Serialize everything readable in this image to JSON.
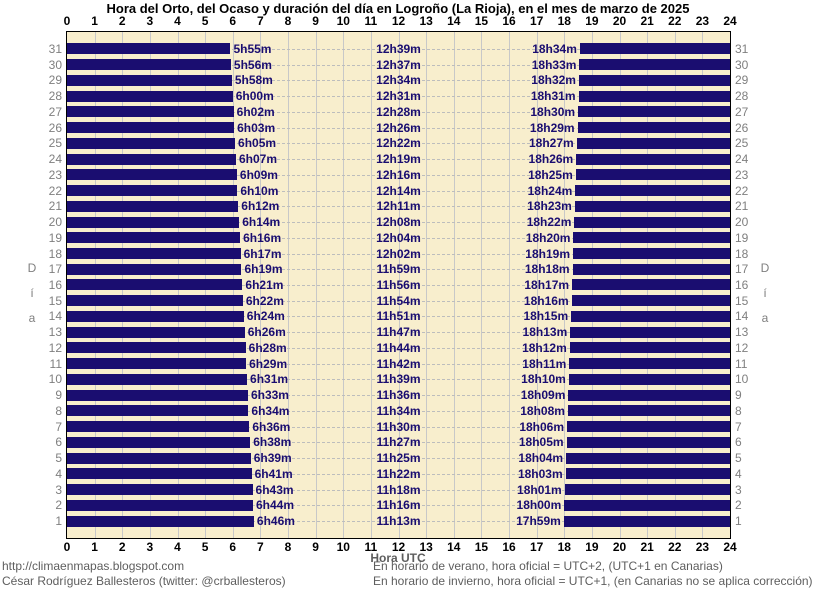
{
  "page": {
    "title": "Hora del Orto, del Ocaso y duración del día en Logroño (La Rioja), en el mes de marzo de 2025",
    "x_axis_title": "Hora UTC",
    "footer": {
      "left_line1": "http://climaenmapas.blogspot.com",
      "left_line2": "César Rodríguez Ballesteros (twitter: @crballesteros)",
      "right_line1": "En horario de verano, hora oficial = UTC+2, (UTC+1 en Canarias)",
      "right_line2": "En horario de invierno, hora oficial = UTC+1, (en Canarias no se aplica corrección)"
    }
  },
  "chart_data": {
    "type": "bar",
    "title": "Hora del Orto, del Ocaso y duración del día en Logroño (La Rioja), en el mes de marzo de 2025",
    "xlabel": "Hora UTC",
    "ylabel": "Día",
    "ylabel_letters": [
      "D",
      "í",
      "a"
    ],
    "x_axis": {
      "min": 0,
      "max": 24,
      "tick_step": 1,
      "tick_labels": [
        "0",
        "1",
        "2",
        "3",
        "4",
        "5",
        "6",
        "7",
        "8",
        "9",
        "10",
        "11",
        "12",
        "13",
        "14",
        "15",
        "16",
        "17",
        "18",
        "19",
        "20",
        "21",
        "22",
        "23",
        "24"
      ]
    },
    "y_axis": {
      "label": "Día",
      "days_order": "31 at top down to 1 at bottom"
    },
    "grid": true,
    "legend": false,
    "colors": {
      "night_bar": "#1a0d70",
      "plot_background": "#f8eecd",
      "gridline": "#c8c8c8",
      "row_gridline_dashed": "#bdbdbd",
      "time_label_text": "#1a0d70",
      "day_number_text": "#7f7f7f",
      "footer_text": "#5e5e5e",
      "axis_number_text": "#000000"
    },
    "bars_meaning": "navy bars span night hours: 00:00 to sunrise and sunset to 24:00; labels show sunrise time, day length, sunset time",
    "days": [
      {
        "day": 1,
        "sunrise": "6h46m",
        "daylength": "11h13m",
        "sunset": "17h59m"
      },
      {
        "day": 2,
        "sunrise": "6h44m",
        "daylength": "11h16m",
        "sunset": "18h00m"
      },
      {
        "day": 3,
        "sunrise": "6h43m",
        "daylength": "11h18m",
        "sunset": "18h01m"
      },
      {
        "day": 4,
        "sunrise": "6h41m",
        "daylength": "11h22m",
        "sunset": "18h03m"
      },
      {
        "day": 5,
        "sunrise": "6h39m",
        "daylength": "11h25m",
        "sunset": "18h04m"
      },
      {
        "day": 6,
        "sunrise": "6h38m",
        "daylength": "11h27m",
        "sunset": "18h05m"
      },
      {
        "day": 7,
        "sunrise": "6h36m",
        "daylength": "11h30m",
        "sunset": "18h06m"
      },
      {
        "day": 8,
        "sunrise": "6h34m",
        "daylength": "11h34m",
        "sunset": "18h08m"
      },
      {
        "day": 9,
        "sunrise": "6h33m",
        "daylength": "11h36m",
        "sunset": "18h09m"
      },
      {
        "day": 10,
        "sunrise": "6h31m",
        "daylength": "11h39m",
        "sunset": "18h10m"
      },
      {
        "day": 11,
        "sunrise": "6h29m",
        "daylength": "11h42m",
        "sunset": "18h11m"
      },
      {
        "day": 12,
        "sunrise": "6h28m",
        "daylength": "11h44m",
        "sunset": "18h12m"
      },
      {
        "day": 13,
        "sunrise": "6h26m",
        "daylength": "11h47m",
        "sunset": "18h13m"
      },
      {
        "day": 14,
        "sunrise": "6h24m",
        "daylength": "11h51m",
        "sunset": "18h15m"
      },
      {
        "day": 15,
        "sunrise": "6h22m",
        "daylength": "11h54m",
        "sunset": "18h16m"
      },
      {
        "day": 16,
        "sunrise": "6h21m",
        "daylength": "11h56m",
        "sunset": "18h17m"
      },
      {
        "day": 17,
        "sunrise": "6h19m",
        "daylength": "11h59m",
        "sunset": "18h18m"
      },
      {
        "day": 18,
        "sunrise": "6h17m",
        "daylength": "12h02m",
        "sunset": "18h19m"
      },
      {
        "day": 19,
        "sunrise": "6h16m",
        "daylength": "12h04m",
        "sunset": "18h20m"
      },
      {
        "day": 20,
        "sunrise": "6h14m",
        "daylength": "12h08m",
        "sunset": "18h22m"
      },
      {
        "day": 21,
        "sunrise": "6h12m",
        "daylength": "12h11m",
        "sunset": "18h23m"
      },
      {
        "day": 22,
        "sunrise": "6h10m",
        "daylength": "12h14m",
        "sunset": "18h24m"
      },
      {
        "day": 23,
        "sunrise": "6h09m",
        "daylength": "12h16m",
        "sunset": "18h25m"
      },
      {
        "day": 24,
        "sunrise": "6h07m",
        "daylength": "12h19m",
        "sunset": "18h26m"
      },
      {
        "day": 25,
        "sunrise": "6h05m",
        "daylength": "12h22m",
        "sunset": "18h27m"
      },
      {
        "day": 26,
        "sunrise": "6h03m",
        "daylength": "12h26m",
        "sunset": "18h29m"
      },
      {
        "day": 27,
        "sunrise": "6h02m",
        "daylength": "12h28m",
        "sunset": "18h30m"
      },
      {
        "day": 28,
        "sunrise": "6h00m",
        "daylength": "12h31m",
        "sunset": "18h31m"
      },
      {
        "day": 29,
        "sunrise": "5h58m",
        "daylength": "12h34m",
        "sunset": "18h32m"
      },
      {
        "day": 30,
        "sunrise": "5h56m",
        "daylength": "12h37m",
        "sunset": "18h33m"
      },
      {
        "day": 31,
        "sunrise": "5h55m",
        "daylength": "12h39m",
        "sunset": "18h34m"
      }
    ]
  }
}
